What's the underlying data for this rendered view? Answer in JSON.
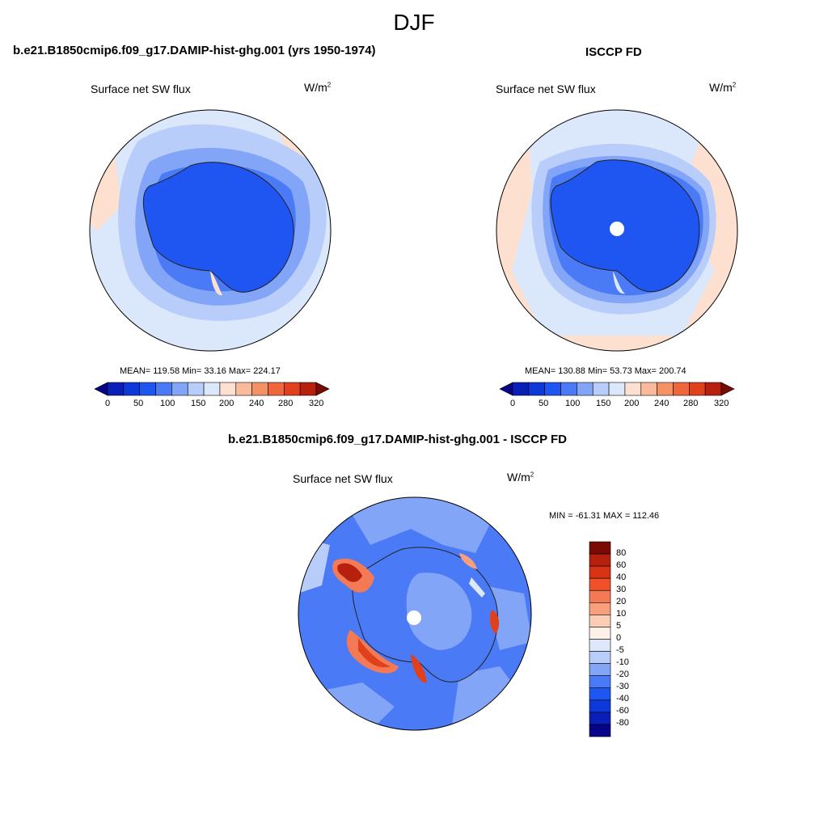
{
  "title": "DJF",
  "panels": [
    {
      "id": "model",
      "title": "b.e21.B1850cmip6.f09_g17.DAMIP-hist-ghg.001 (yrs 1950-1974)",
      "variable": "Surface net SW flux",
      "units_base": "W/m",
      "units_exp": "2",
      "stats": "MEAN= 119.58  Min=  33.16  Max= 224.17",
      "colorbar_ticks": [
        "0",
        "50",
        "100",
        "150",
        "200",
        "240",
        "280",
        "320"
      ]
    },
    {
      "id": "obs",
      "title": "ISCCP FD",
      "variable": "Surface net SW flux",
      "units_base": "W/m",
      "units_exp": "2",
      "stats": "MEAN= 130.88  Min=  53.73  Max= 200.74",
      "colorbar_ticks": [
        "0",
        "50",
        "100",
        "150",
        "200",
        "240",
        "280",
        "320"
      ]
    },
    {
      "id": "diff",
      "title": "b.e21.B1850cmip6.f09_g17.DAMIP-hist-ghg.001 - ISCCP FD",
      "variable": "Surface net SW flux",
      "units_base": "W/m",
      "units_exp": "2",
      "stats": "MIN = -61.31 MAX = 112.46",
      "colorbar_ticks": [
        "80",
        "60",
        "40",
        "30",
        "20",
        "10",
        "5",
        "0",
        "-5",
        "-10",
        "-20",
        "-30",
        "-40",
        "-60",
        "-80"
      ]
    }
  ],
  "colors": {
    "abs_scale": [
      "#08048a",
      "#0a1fb8",
      "#0d39d9",
      "#1f55f0",
      "#4a7af5",
      "#83a5f8",
      "#b8cdf9",
      "#dbe8fb",
      "#fde0cf",
      "#f9bb9b",
      "#f59167",
      "#f0663c",
      "#e0401c",
      "#b8200e",
      "#7a0a04"
    ],
    "diff_scale": [
      "#7a0a04",
      "#b8200e",
      "#d83214",
      "#f0502a",
      "#f47a55",
      "#f8a07e",
      "#fbcdb4",
      "#fdf0e6",
      "#dde9fb",
      "#b8cdf9",
      "#83a5f8",
      "#4a7af5",
      "#1f55f0",
      "#0d39d9",
      "#0a1fb8",
      "#08048a"
    ],
    "ocean_light": "#dbe8fb",
    "ocean_mid": "#b8cdf9",
    "ocean_band": "#83a5f8",
    "ice": "#1f55f0",
    "warm": "#fde0cf"
  }
}
